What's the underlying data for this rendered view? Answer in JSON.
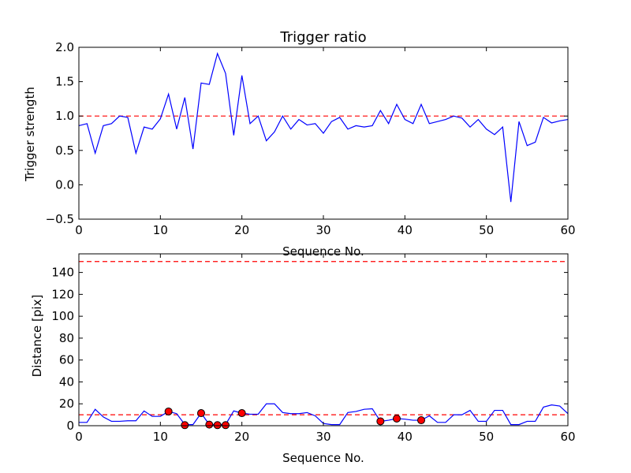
{
  "chart_data": [
    {
      "type": "line",
      "title": "Trigger ratio",
      "xlabel": "Sequence No.",
      "ylabel": "Trigger strength",
      "xlim": [
        0,
        60
      ],
      "ylim": [
        -0.5,
        2.0
      ],
      "xticks": [
        "0",
        "10",
        "20",
        "30",
        "40",
        "50",
        "60"
      ],
      "yticks": [
        "−0.5",
        "0.0",
        "0.5",
        "1.0",
        "1.5",
        "2.0"
      ],
      "grid": false,
      "colors": {
        "line": "#0000ff",
        "threshold": "#ff0000"
      },
      "threshold_lines": [
        1.0
      ],
      "series": [
        {
          "x": [
            0,
            1,
            2,
            3,
            4,
            5,
            6,
            7,
            8,
            9,
            10,
            11,
            12,
            13,
            14,
            15,
            16,
            17,
            18,
            19,
            20,
            21,
            22,
            23,
            24,
            25,
            26,
            27,
            28,
            29,
            30,
            31,
            32,
            33,
            34,
            35,
            36,
            37,
            38,
            39,
            40,
            41,
            42,
            43,
            44,
            45,
            46,
            47,
            48,
            49,
            50,
            51,
            52,
            53,
            54,
            55,
            56,
            57,
            58,
            59,
            60
          ],
          "y": [
            0.86,
            0.89,
            0.46,
            0.86,
            0.89,
            1.0,
            0.98,
            0.46,
            0.84,
            0.81,
            0.96,
            1.32,
            0.81,
            1.27,
            0.52,
            1.48,
            1.46,
            1.91,
            1.62,
            0.72,
            1.59,
            0.89,
            1.0,
            0.64,
            0.77,
            1.0,
            0.81,
            0.95,
            0.87,
            0.89,
            0.75,
            0.92,
            0.98,
            0.81,
            0.86,
            0.84,
            0.86,
            1.08,
            0.89,
            1.17,
            0.95,
            0.89,
            1.17,
            0.89,
            0.92,
            0.95,
            1.0,
            0.97,
            0.84,
            0.95,
            0.81,
            0.73,
            0.84,
            -0.25,
            0.92,
            0.57,
            0.62,
            0.98,
            0.9,
            0.93,
            0.95
          ]
        }
      ]
    },
    {
      "type": "line",
      "title": "",
      "xlabel": "Sequence No.",
      "ylabel": "Distance [pix]",
      "xlim": [
        0,
        60
      ],
      "ylim": [
        0,
        157
      ],
      "xticks": [
        "0",
        "10",
        "20",
        "30",
        "40",
        "50",
        "60"
      ],
      "yticks": [
        "0",
        "20",
        "40",
        "60",
        "80",
        "100",
        "120",
        "140"
      ],
      "grid": false,
      "colors": {
        "line": "#0000ff",
        "threshold": "#ff0000",
        "marker": "#ff0000"
      },
      "threshold_lines": [
        10,
        150
      ],
      "series": [
        {
          "x": [
            0,
            1,
            2,
            3,
            4,
            5,
            6,
            7,
            8,
            9,
            10,
            11,
            12,
            13,
            14,
            15,
            16,
            17,
            18,
            19,
            20,
            21,
            22,
            23,
            24,
            25,
            26,
            27,
            28,
            29,
            30,
            31,
            32,
            33,
            34,
            35,
            36,
            37,
            38,
            39,
            40,
            41,
            42,
            43,
            44,
            45,
            46,
            47,
            48,
            49,
            50,
            51,
            52,
            53,
            54,
            55,
            56,
            57,
            58,
            59,
            60
          ],
          "y": [
            3,
            3,
            15,
            8,
            4,
            4,
            4.5,
            4.5,
            13.5,
            8.5,
            8.5,
            13,
            11,
            1,
            1,
            11.5,
            1,
            1,
            1,
            13.5,
            11.5,
            10.5,
            10.5,
            20,
            20,
            12,
            11,
            11,
            12,
            9,
            2,
            1,
            1,
            12,
            13,
            15,
            15.5,
            4,
            5,
            6.5,
            6,
            5,
            5,
            9,
            3,
            3,
            10,
            10,
            14,
            4,
            4,
            14,
            14,
            1,
            1,
            4,
            4,
            17,
            19,
            18,
            11
          ]
        }
      ],
      "markers": {
        "x": [
          11,
          13,
          15,
          16,
          17,
          18,
          20,
          37,
          39,
          42
        ],
        "y": [
          13,
          0.5,
          11.5,
          1,
          0.5,
          0.5,
          11.5,
          4,
          6.5,
          5
        ]
      }
    }
  ]
}
